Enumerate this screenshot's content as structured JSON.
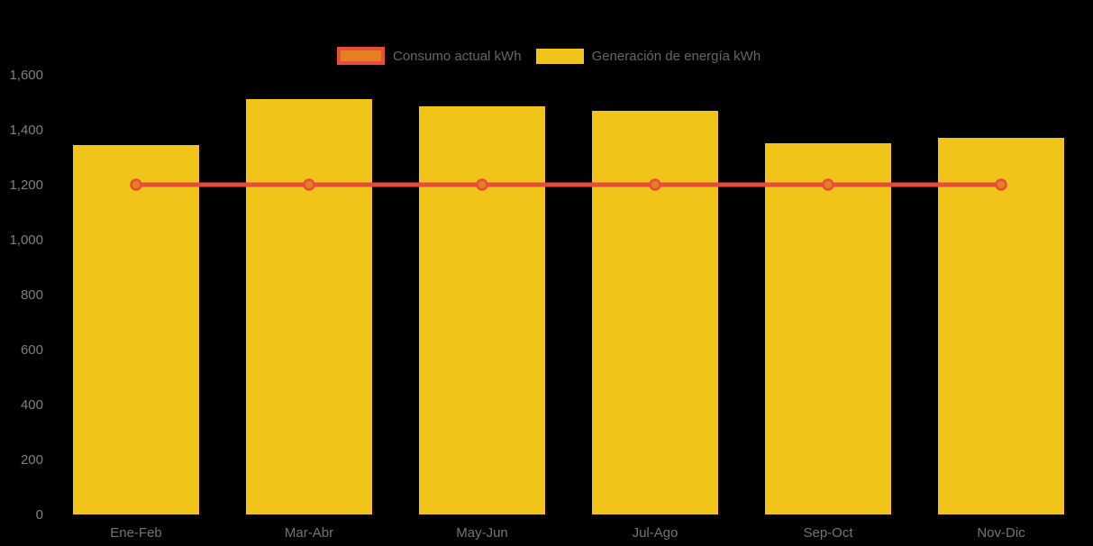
{
  "chart_data": {
    "type": "bar",
    "title": "",
    "categories": [
      "Ene-Feb",
      "Mar-Abr",
      "May-Jun",
      "Jul-Ago",
      "Sep-Oct",
      "Nov-Dic"
    ],
    "series": [
      {
        "name": "Consumo actual kWh",
        "type": "line",
        "values": [
          1200,
          1200,
          1200,
          1200,
          1200,
          1200
        ],
        "color": "#e74c3c",
        "marker_fill": "#e67e22"
      },
      {
        "name": "Generación de energía kWh",
        "type": "bar",
        "values": [
          1345,
          1510,
          1485,
          1470,
          1350,
          1370
        ],
        "color": "#f0c419"
      }
    ],
    "xlabel": "",
    "ylabel": "",
    "ylim": [
      0,
      1600
    ],
    "ytick_step": 200,
    "yticks": [
      "0",
      "200",
      "400",
      "600",
      "800",
      "1,000",
      "1,200",
      "1,400",
      "1,600"
    ],
    "legend_position": "top",
    "grid": false
  },
  "colors": {
    "background": "#000000",
    "bar_yellow": "#f0c419",
    "line_red": "#e74c3c",
    "marker_orange": "#e67e22",
    "axis_text": "#7f7f7f",
    "legend_text": "#666666"
  }
}
